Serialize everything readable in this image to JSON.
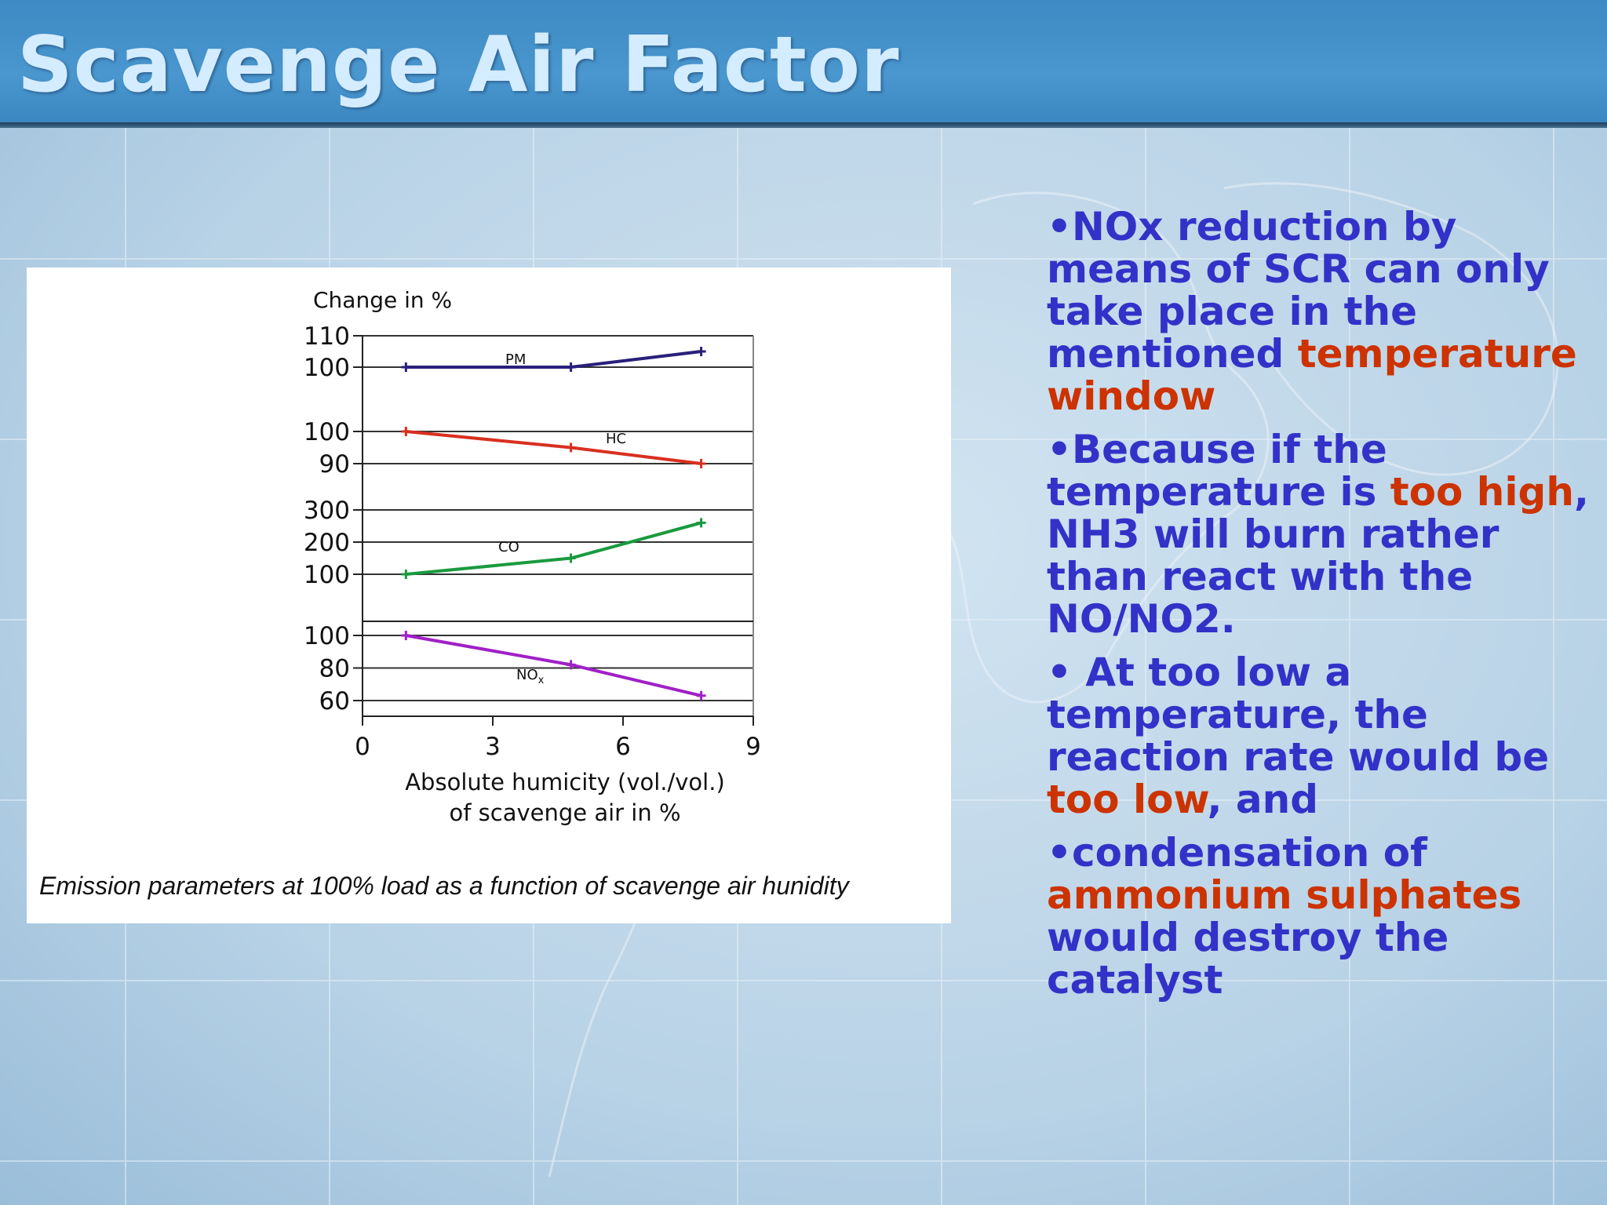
{
  "slide": {
    "title": "Scavenge Air Factor"
  },
  "colors": {
    "title": "#d4ecff",
    "bullet_text": "#3232c8",
    "highlight": "#cc3300",
    "header_band": "#4a97cf",
    "background": "#b9d3e6"
  },
  "figure": {
    "caption": "Emission parameters at 100% load as a function of scavenge air hunidity"
  },
  "chart_data": {
    "type": "line",
    "title": "",
    "ylabel": "Change in %",
    "xlabel_line1": "Absolute humicity (vol./vol.)",
    "xlabel_line2": "of scavenge air in %",
    "xlim": [
      0,
      9
    ],
    "x_ticks": [
      0,
      3,
      6,
      9
    ],
    "x_tick_labels": [
      "0",
      "3",
      "6",
      "9"
    ],
    "grid": true,
    "panels": [
      {
        "series": {
          "name": "PM",
          "color": "#2a1f7a",
          "x": [
            1,
            4.8,
            7.8
          ],
          "y": [
            100,
            100,
            105
          ]
        },
        "ylim": [
          92,
          110
        ],
        "y_ticks": [
          100,
          110
        ],
        "y_tick_labels": [
          "100",
          "110"
        ],
        "gridlines": [
          100,
          110
        ]
      },
      {
        "series": {
          "name": "HC",
          "color": "#d83020",
          "x": [
            1,
            4.8,
            7.8
          ],
          "y": [
            100,
            95,
            90
          ]
        },
        "ylim": [
          90,
          100
        ],
        "y_ticks": [
          90,
          100
        ],
        "y_tick_labels": [
          "90",
          "100"
        ],
        "gridlines": [
          90,
          100
        ]
      },
      {
        "series": {
          "name": "CO",
          "color": "#1a9a40",
          "x": [
            1,
            4.8,
            7.8
          ],
          "y": [
            100,
            150,
            260
          ]
        },
        "ylim": [
          100,
          300
        ],
        "y_ticks": [
          100,
          200,
          300
        ],
        "y_tick_labels": [
          "100",
          "200",
          "300"
        ],
        "gridlines": [
          100,
          200,
          300
        ]
      },
      {
        "series": {
          "name": "NOx",
          "label_main": "NO",
          "label_sub": "x",
          "color": "#a020c8",
          "x": [
            1,
            4.8,
            7.8
          ],
          "y": [
            100,
            82,
            63
          ]
        },
        "ylim": [
          60,
          100
        ],
        "y_ticks": [
          60,
          80,
          100
        ],
        "y_tick_labels": [
          "60",
          "80",
          "100"
        ],
        "gridlines": [
          60,
          80,
          100,
          110
        ]
      }
    ]
  },
  "bullets": [
    {
      "segments": [
        {
          "text": "•NOx reduction by means of SCR can only take place in the mentioned ",
          "highlight": false
        },
        {
          "text": "temperature window",
          "highlight": true
        }
      ]
    },
    {
      "segments": [
        {
          "text": "•Because if the temperature is ",
          "highlight": false
        },
        {
          "text": "too high",
          "highlight": true
        },
        {
          "text": ", NH3 will burn rather than react with the NO/NO2.",
          "highlight": false
        }
      ]
    },
    {
      "segments": [
        {
          "text": "• At too low a temperature, the reaction rate would be ",
          "highlight": false
        },
        {
          "text": "too low",
          "highlight": true
        },
        {
          "text": ", and",
          "highlight": false
        }
      ]
    },
    {
      "segments": [
        {
          "text": "•condensation of ",
          "highlight": false
        },
        {
          "text": "ammonium sulphates",
          "highlight": true
        },
        {
          "text": " would destroy the catalyst",
          "highlight": false
        }
      ]
    }
  ]
}
